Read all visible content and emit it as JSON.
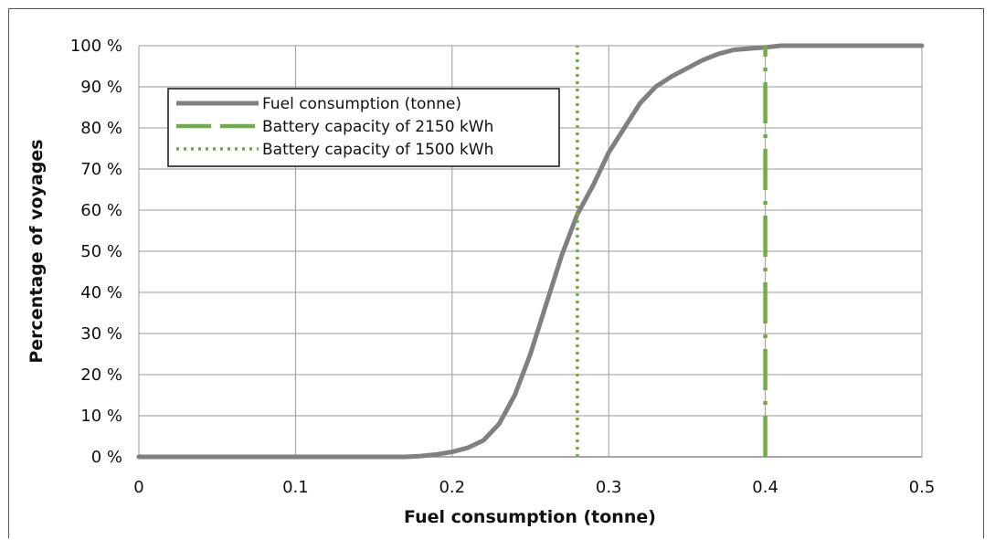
{
  "chart_data": {
    "type": "line",
    "title": "",
    "xlabel": "Fuel consumption (tonne)",
    "ylabel": "Percentage of voyages",
    "xlim": [
      0,
      0.5
    ],
    "ylim": [
      0,
      100
    ],
    "x_ticks": [
      "0",
      "0.1",
      "0.2",
      "0.3",
      "0.4",
      "0.5"
    ],
    "y_ticks": [
      "0 %",
      "10 %",
      "20 %",
      "30 %",
      "40 %",
      "50 %",
      "60 %",
      "70 %",
      "80 %",
      "90 %",
      "100 %"
    ],
    "grid": true,
    "legend_position": "upper-left",
    "series": [
      {
        "name": "Fuel consumption (tonne)",
        "style": "solid",
        "color": "#808080",
        "x": [
          0,
          0.17,
          0.18,
          0.19,
          0.2,
          0.21,
          0.22,
          0.23,
          0.24,
          0.25,
          0.26,
          0.27,
          0.28,
          0.29,
          0.3,
          0.31,
          0.32,
          0.33,
          0.34,
          0.35,
          0.36,
          0.37,
          0.38,
          0.4,
          0.41,
          0.5
        ],
        "y": [
          0,
          0,
          0.2,
          0.6,
          1.2,
          2.2,
          4.0,
          8.0,
          15.0,
          25.0,
          37.0,
          49.0,
          59.0,
          66.0,
          74.0,
          80.0,
          86.0,
          90.0,
          92.5,
          94.5,
          96.5,
          98.0,
          99.0,
          99.6,
          100,
          100
        ]
      },
      {
        "name": "Battery capacity of 2150 kWh",
        "style": "dash-dot",
        "color": "#70AD47",
        "x": [
          0.4,
          0.4
        ],
        "y": [
          0,
          100
        ]
      },
      {
        "name": "Battery capacity of 1500 kWh",
        "style": "dotted",
        "color": "#70AD47",
        "x": [
          0.28,
          0.28
        ],
        "y": [
          0,
          100
        ]
      }
    ]
  }
}
